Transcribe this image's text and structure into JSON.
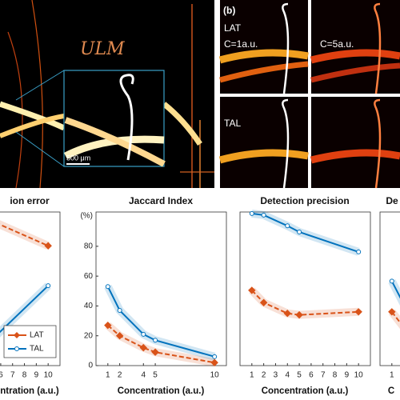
{
  "image_text": {
    "ulm": "ULM",
    "scale": "500 μm",
    "panel_b": "(b)",
    "lat": "LAT",
    "c1": "C=1a.u.",
    "c5": "C=5a.u.",
    "tal": "TAL"
  },
  "chart_data": [
    {
      "type": "line",
      "title": "ion error",
      "xlabel": "ntration (a.u.)",
      "x": [
        5,
        10
      ],
      "xlim": [
        0,
        11
      ],
      "xticks": [
        6,
        7,
        8,
        9,
        10
      ],
      "ylim": [
        0,
        100
      ],
      "legend": "lower right",
      "series": [
        {
          "name": "LAT",
          "color": "#d95319",
          "marker": "diamond",
          "dash": true,
          "values": [
            95,
            78
          ]
        },
        {
          "name": "TAL",
          "color": "#0072bd",
          "marker": "circle",
          "dash": false,
          "values": [
            15,
            52
          ]
        }
      ]
    },
    {
      "type": "line",
      "title": "Jaccard Index",
      "ylabel": "(%)",
      "xlabel": "Concentration (a.u.)",
      "x": [
        1,
        2,
        4,
        5,
        10
      ],
      "xlim": [
        0,
        11
      ],
      "xticks": [
        1,
        2,
        4,
        5,
        10
      ],
      "ylim": [
        0,
        103
      ],
      "yticks": [
        0,
        20,
        40,
        60,
        80
      ],
      "series": [
        {
          "name": "LAT",
          "color": "#d95319",
          "marker": "diamond",
          "dash": true,
          "values": [
            27,
            20,
            12,
            9,
            2
          ]
        },
        {
          "name": "TAL",
          "color": "#0072bd",
          "marker": "circle",
          "dash": false,
          "values": [
            53,
            37,
            21,
            17,
            6
          ]
        }
      ]
    },
    {
      "type": "line",
      "title": "Detection precision",
      "xlabel": "Concentration (a.u.)",
      "x": [
        1,
        2,
        4,
        5,
        10
      ],
      "xlim": [
        0,
        11
      ],
      "xticks": [
        1,
        2,
        3,
        4,
        5,
        6,
        7,
        8,
        9,
        10
      ],
      "ylim": [
        0,
        100
      ],
      "series": [
        {
          "name": "LAT",
          "color": "#d95319",
          "marker": "diamond",
          "dash": true,
          "values": [
            49,
            41,
            34,
            33,
            35
          ]
        },
        {
          "name": "TAL",
          "color": "#0072bd",
          "marker": "circle",
          "dash": false,
          "values": [
            99,
            98,
            91,
            87,
            74
          ]
        }
      ]
    },
    {
      "type": "line",
      "title": "De",
      "xlabel": "C",
      "x": [
        1,
        2
      ],
      "xlim": [
        0,
        11
      ],
      "xticks": [
        1
      ],
      "ylim": [
        0,
        100
      ],
      "series": [
        {
          "name": "LAT",
          "color": "#d95319",
          "marker": "diamond",
          "dash": true,
          "values": [
            35,
            25
          ]
        },
        {
          "name": "TAL",
          "color": "#0072bd",
          "marker": "circle",
          "dash": false,
          "values": [
            55,
            40
          ]
        }
      ]
    }
  ]
}
